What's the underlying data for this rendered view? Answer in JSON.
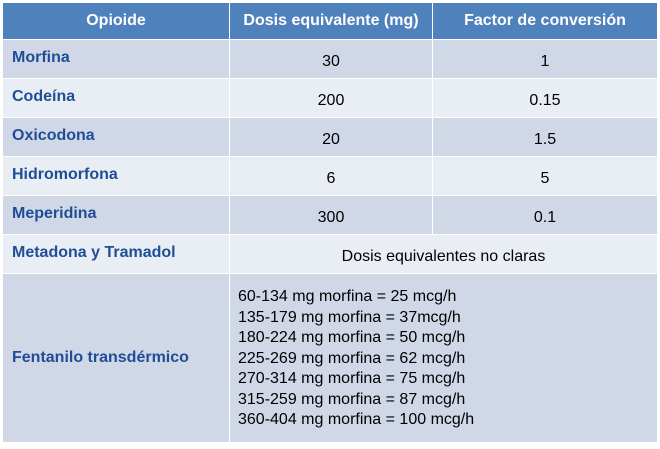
{
  "headers": [
    "Opioide",
    "Dosis equivalente (mg)",
    "Factor de conversión"
  ],
  "rows": [
    {
      "opioide": "Morfina",
      "dosis": "30",
      "factor": "1"
    },
    {
      "opioide": "Codeína",
      "dosis": "200",
      "factor": "0.15"
    },
    {
      "opioide": "Oxicodona",
      "dosis": "20",
      "factor": "1.5"
    },
    {
      "opioide": "Hidromorfona",
      "dosis": "6",
      "factor": "5"
    },
    {
      "opioide": "Meperidina",
      "dosis": "300",
      "factor": "0.1"
    }
  ],
  "metadona": {
    "opioide": "Metadona y Tramadol",
    "note": "Dosis equivalentes no claras"
  },
  "fentanilo": {
    "opioide": "Fentanilo transdérmico",
    "lines": [
      "60-134 mg morfina = 25 mcg/h",
      "135-179 mg morfina = 37mcg/h",
      "180-224 mg morfina = 50 mcg/h",
      "225-269 mg morfina = 62 mcg/h",
      "270-314 mg morfina = 75 mcg/h",
      "315-259 mg morfina = 87 mcg/h",
      "360-404 mg morfina = 100 mcg/h"
    ]
  },
  "colors": {
    "header_bg": "#4f81bd",
    "header_text": "#ffffff",
    "row_dark": "#d0d8e8",
    "row_light": "#e9edf4",
    "name_text": "#1f4e96"
  }
}
